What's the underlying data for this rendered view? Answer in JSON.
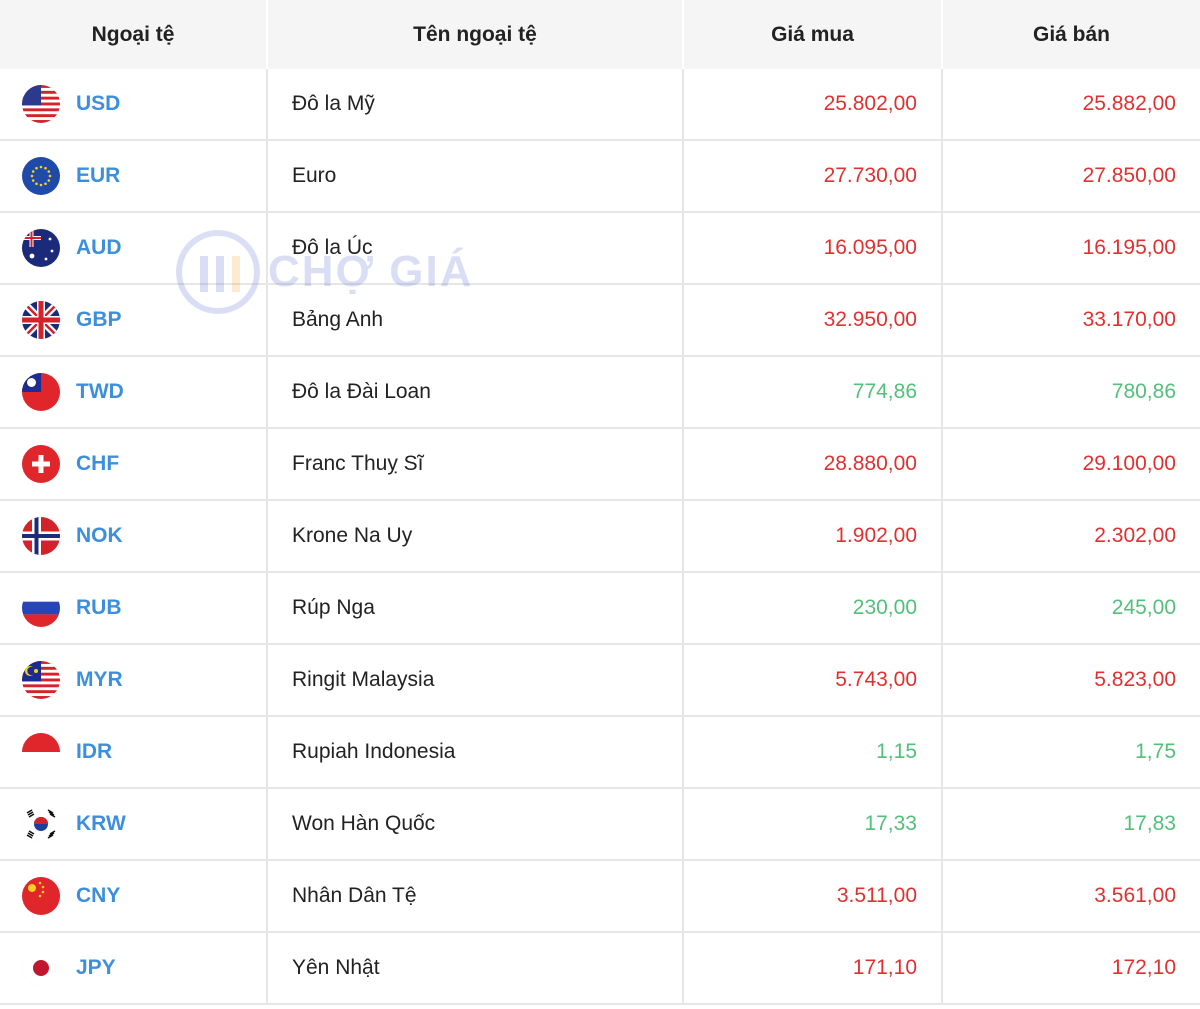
{
  "table": {
    "headers": [
      "Ngoại tệ",
      "Tên ngoại tệ",
      "Giá mua",
      "Giá bán"
    ],
    "rows": [
      {
        "code": "USD",
        "name": "Đô la Mỹ",
        "buy": "25.802,00",
        "sell": "25.882,00",
        "trend": "up",
        "flag_icon": "us-flag-icon"
      },
      {
        "code": "EUR",
        "name": "Euro",
        "buy": "27.730,00",
        "sell": "27.850,00",
        "trend": "up",
        "flag_icon": "eu-flag-icon"
      },
      {
        "code": "AUD",
        "name": "Đô la Úc",
        "buy": "16.095,00",
        "sell": "16.195,00",
        "trend": "up",
        "flag_icon": "au-flag-icon"
      },
      {
        "code": "GBP",
        "name": "Bảng Anh",
        "buy": "32.950,00",
        "sell": "33.170,00",
        "trend": "up",
        "flag_icon": "gb-flag-icon"
      },
      {
        "code": "TWD",
        "name": "Đô la Đài Loan",
        "buy": "774,86",
        "sell": "780,86",
        "trend": "down",
        "flag_icon": "tw-flag-icon"
      },
      {
        "code": "CHF",
        "name": "Franc Thuỵ Sĩ",
        "buy": "28.880,00",
        "sell": "29.100,00",
        "trend": "up",
        "flag_icon": "ch-flag-icon"
      },
      {
        "code": "NOK",
        "name": "Krone Na Uy",
        "buy": "1.902,00",
        "sell": "2.302,00",
        "trend": "up",
        "flag_icon": "no-flag-icon"
      },
      {
        "code": "RUB",
        "name": "Rúp Nga",
        "buy": "230,00",
        "sell": "245,00",
        "trend": "down",
        "flag_icon": "ru-flag-icon"
      },
      {
        "code": "MYR",
        "name": "Ringit Malaysia",
        "buy": "5.743,00",
        "sell": "5.823,00",
        "trend": "up",
        "flag_icon": "my-flag-icon"
      },
      {
        "code": "IDR",
        "name": "Rupiah Indonesia",
        "buy": "1,15",
        "sell": "1,75",
        "trend": "down",
        "flag_icon": "id-flag-icon"
      },
      {
        "code": "KRW",
        "name": "Won Hàn Quốc",
        "buy": "17,33",
        "sell": "17,83",
        "trend": "down",
        "flag_icon": "kr-flag-icon"
      },
      {
        "code": "CNY",
        "name": "Nhân Dân Tệ",
        "buy": "3.511,00",
        "sell": "3.561,00",
        "trend": "up",
        "flag_icon": "cn-flag-icon"
      },
      {
        "code": "JPY",
        "name": "Yên Nhật",
        "buy": "171,10",
        "sell": "172,10",
        "trend": "up",
        "flag_icon": "jp-flag-icon"
      }
    ]
  },
  "watermark": {
    "text": "CHỢ GIÁ",
    "icon": "cho-gia-logo-icon"
  },
  "colors": {
    "code": "#3d8fdd",
    "price_up": "#e03131",
    "price_down": "#52c07a",
    "header_bg": "#f5f5f5",
    "border": "#e6e6e6"
  }
}
